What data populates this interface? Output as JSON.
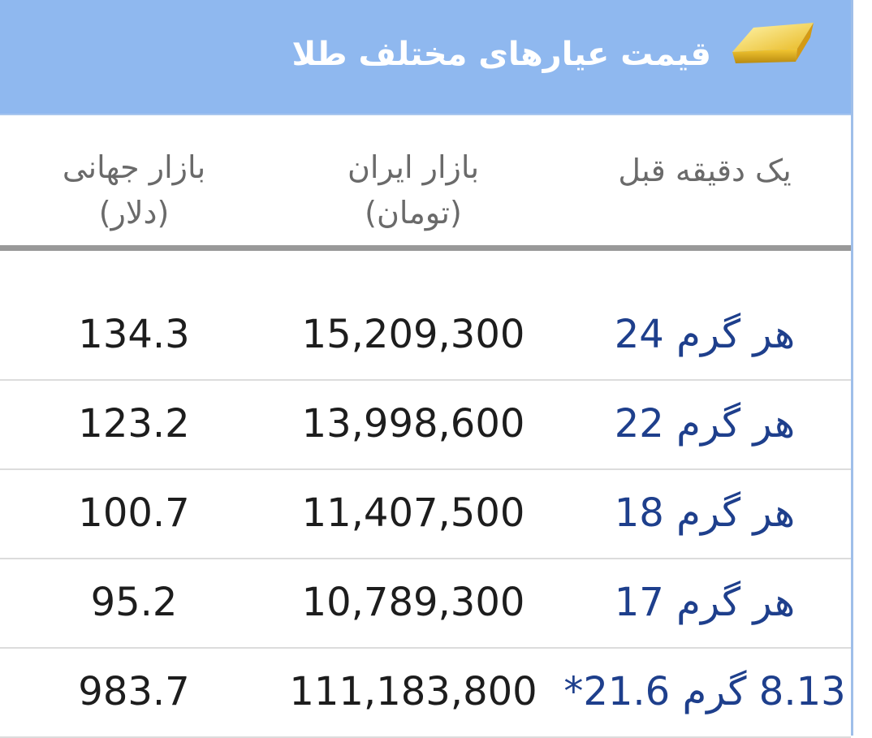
{
  "header": {
    "title": "قیمت عیارهای مختلف طلا",
    "icon": "gold-bar-icon",
    "background": "#8fb8ef"
  },
  "columns": {
    "updated": "یک دقیقه قبل",
    "iran_market": {
      "line1": "بازار ایران",
      "line2": "(تومان)"
    },
    "world_market": {
      "line1": "بازار جهانی",
      "line2": "(دلار)"
    }
  },
  "rows": [
    {
      "label": "هر گرم 24",
      "iran": "15,209,300",
      "world": "134.3"
    },
    {
      "label": "هر گرم 22",
      "iran": "13,998,600",
      "world": "123.2"
    },
    {
      "label": "هر گرم 18",
      "iran": "11,407,500",
      "world": "100.7"
    },
    {
      "label": "هر گرم 17",
      "iran": "10,789,300",
      "world": "95.2"
    },
    {
      "label": "8.13 گرم 21.6*",
      "iran": "111,183,800",
      "world": "983.7"
    }
  ],
  "colors": {
    "label_text": "#1e3f8c",
    "value_text": "#1d1d1d"
  }
}
